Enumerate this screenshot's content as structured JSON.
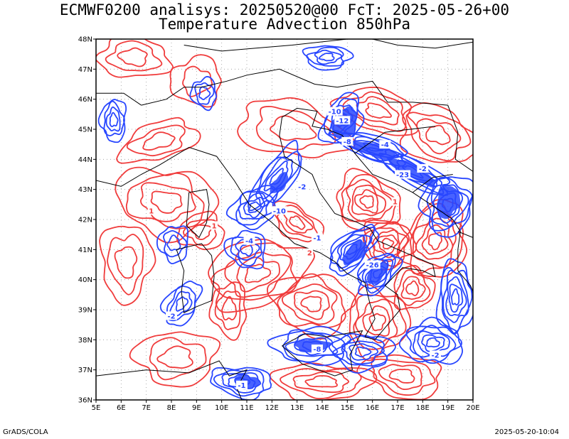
{
  "title": {
    "line1": "ECMWF0200 analisys: 20250520@00 FcT: 2025-05-26+00",
    "line2": "Temperature Advection 850hPa"
  },
  "axes": {
    "lon_labels": [
      "5E",
      "6E",
      "7E",
      "8E",
      "9E",
      "10E",
      "11E",
      "12E",
      "13E",
      "14E",
      "15E",
      "16E",
      "17E",
      "18E",
      "19E",
      "20E"
    ],
    "lat_labels": [
      "48N",
      "47N",
      "46N",
      "45N",
      "44N",
      "43N",
      "42N",
      "41N",
      "40N",
      "39N",
      "38N",
      "37N",
      "36N"
    ],
    "lon_range": [
      5,
      20
    ],
    "lat_range": [
      36,
      48
    ]
  },
  "colors": {
    "positive": "#f03c3c",
    "negative": "#2846ff",
    "coast": "#000000",
    "grid": "#999999"
  },
  "contour_labels": [
    {
      "text": "-2",
      "lon": 13.2,
      "lat": 43.1,
      "sign": "neg"
    },
    {
      "text": "-10",
      "lon": 12.3,
      "lat": 42.3,
      "sign": "neg"
    },
    {
      "text": "-12",
      "lon": 14.8,
      "lat": 45.3,
      "sign": "neg"
    },
    {
      "text": "-10",
      "lon": 14.5,
      "lat": 45.6,
      "sign": "neg"
    },
    {
      "text": "-8",
      "lon": 15.0,
      "lat": 44.6,
      "sign": "neg"
    },
    {
      "text": "-23",
      "lon": 17.2,
      "lat": 43.5,
      "sign": "neg"
    },
    {
      "text": "-2",
      "lon": 18.0,
      "lat": 43.7,
      "sign": "neg"
    },
    {
      "text": "-4",
      "lon": 16.5,
      "lat": 44.5,
      "sign": "neg"
    },
    {
      "text": "-26",
      "lon": 16.0,
      "lat": 40.5,
      "sign": "neg"
    },
    {
      "text": "-1",
      "lon": 13.8,
      "lat": 41.4,
      "sign": "neg"
    },
    {
      "text": "-2",
      "lon": 8.0,
      "lat": 38.8,
      "sign": "neg"
    },
    {
      "text": "-8",
      "lon": 13.8,
      "lat": 37.7,
      "sign": "neg"
    },
    {
      "text": "-2",
      "lon": 18.5,
      "lat": 37.5,
      "sign": "neg"
    },
    {
      "text": "-1",
      "lon": 10.8,
      "lat": 36.5,
      "sign": "neg"
    },
    {
      "text": "-4",
      "lon": 11.1,
      "lat": 41.3,
      "sign": "neg"
    },
    {
      "text": "1",
      "lon": 7.2,
      "lat": 42.3,
      "sign": "pos"
    },
    {
      "text": "1",
      "lon": 16.9,
      "lat": 42.6,
      "sign": "pos"
    },
    {
      "text": "2",
      "lon": 13.5,
      "lat": 40.9,
      "sign": "pos"
    },
    {
      "text": "1",
      "lon": 9.7,
      "lat": 41.8,
      "sign": "pos"
    }
  ],
  "footer": {
    "left": "GrADS/COLA",
    "right": "2025-05-20-10:04"
  }
}
